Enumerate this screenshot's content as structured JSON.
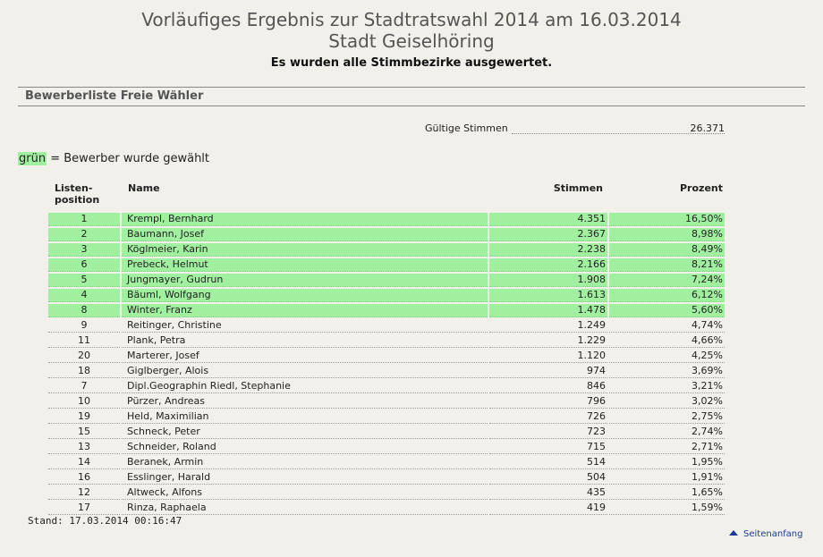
{
  "header": {
    "title_line1": "Vorläufiges Ergebnis zur Stadtratswahl 2014 am 16.03.2014",
    "title_line2": "Stadt Geiselhöring",
    "status": "Es wurden alle Stimmbezirke ausgewertet."
  },
  "section": {
    "title": "Bewerberliste Freie Wähler"
  },
  "summary": {
    "valid_label": "Gültige Stimmen",
    "valid_value": "26.371"
  },
  "legend": {
    "swatch_text": "grün",
    "text": " = Bewerber wurde gewählt"
  },
  "columns": {
    "position_line1": "Listen-",
    "position_line2": "position",
    "name": "Name",
    "votes": "Stimmen",
    "percent": "Prozent"
  },
  "rows": [
    {
      "pos": "1",
      "name": "Krempl, Bernhard",
      "votes": "4.351",
      "pct": "16,50%",
      "elected": true
    },
    {
      "pos": "2",
      "name": "Baumann, Josef",
      "votes": "2.367",
      "pct": "8,98%",
      "elected": true
    },
    {
      "pos": "3",
      "name": "Köglmeier, Karin",
      "votes": "2.238",
      "pct": "8,49%",
      "elected": true
    },
    {
      "pos": "6",
      "name": "Prebeck, Helmut",
      "votes": "2.166",
      "pct": "8,21%",
      "elected": true
    },
    {
      "pos": "5",
      "name": "Jungmayer, Gudrun",
      "votes": "1.908",
      "pct": "7,24%",
      "elected": true
    },
    {
      "pos": "4",
      "name": "Bäuml, Wolfgang",
      "votes": "1.613",
      "pct": "6,12%",
      "elected": true
    },
    {
      "pos": "8",
      "name": "Winter, Franz",
      "votes": "1.478",
      "pct": "5,60%",
      "elected": true
    },
    {
      "pos": "9",
      "name": "Reitinger, Christine",
      "votes": "1.249",
      "pct": "4,74%",
      "elected": false
    },
    {
      "pos": "11",
      "name": "Plank, Petra",
      "votes": "1.229",
      "pct": "4,66%",
      "elected": false
    },
    {
      "pos": "20",
      "name": "Marterer, Josef",
      "votes": "1.120",
      "pct": "4,25%",
      "elected": false
    },
    {
      "pos": "18",
      "name": "Giglberger, Alois",
      "votes": "974",
      "pct": "3,69%",
      "elected": false
    },
    {
      "pos": "7",
      "name": "Dipl.Geographin Riedl, Stephanie",
      "votes": "846",
      "pct": "3,21%",
      "elected": false
    },
    {
      "pos": "10",
      "name": "Pürzer, Andreas",
      "votes": "796",
      "pct": "3,02%",
      "elected": false
    },
    {
      "pos": "19",
      "name": "Held, Maximilian",
      "votes": "726",
      "pct": "2,75%",
      "elected": false
    },
    {
      "pos": "15",
      "name": "Schneck, Peter",
      "votes": "723",
      "pct": "2,74%",
      "elected": false
    },
    {
      "pos": "13",
      "name": "Schneider, Roland",
      "votes": "715",
      "pct": "2,71%",
      "elected": false
    },
    {
      "pos": "14",
      "name": "Beranek, Armin",
      "votes": "514",
      "pct": "1,95%",
      "elected": false
    },
    {
      "pos": "16",
      "name": "Esslinger, Harald",
      "votes": "504",
      "pct": "1,91%",
      "elected": false
    },
    {
      "pos": "12",
      "name": "Altweck, Alfons",
      "votes": "435",
      "pct": "1,65%",
      "elected": false
    },
    {
      "pos": "17",
      "name": "Rinza, Raphaela",
      "votes": "419",
      "pct": "1,59%",
      "elected": false
    }
  ],
  "footer": {
    "stand": "Stand: 17.03.2014 00:16:47",
    "top_link": "Seitenanfang",
    "top_icon": "arrow-up-icon"
  },
  "colors": {
    "elected_bg": "#a0f0a0",
    "page_bg": "#f1f0ea",
    "link": "#1a3d8f"
  }
}
